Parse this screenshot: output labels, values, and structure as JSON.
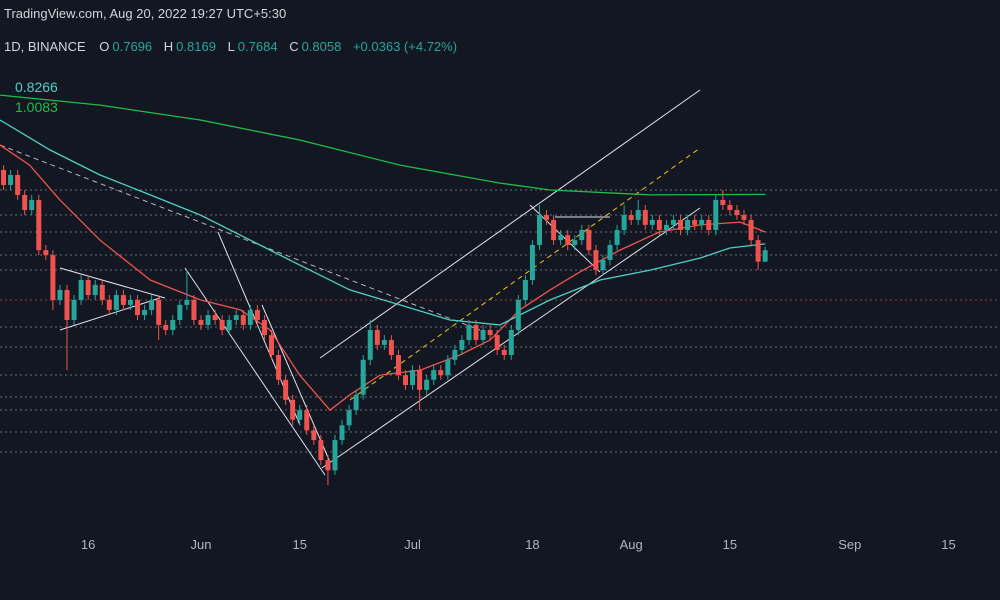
{
  "chart_data": {
    "type": "candlestick",
    "header": {
      "source": "TradingView.com, Aug 20, 2022 19:27 UTC+5:30",
      "symbol": "1D, BINANCE",
      "ohlc_labels": [
        "O",
        "H",
        "L",
        "C"
      ],
      "change": "+0.0363 (+4.72%)"
    },
    "up_color": "#26a69a",
    "down_color": "#ef5350",
    "log_scale": true,
    "ylim": [
      0.26,
      2.2
    ],
    "xlim": [
      2.5,
      144.3
    ],
    "xticks": [
      {
        "value": 15,
        "label": "16"
      },
      {
        "value": 31,
        "label": "Jun"
      },
      {
        "value": 45,
        "label": "15"
      },
      {
        "value": 61,
        "label": "Jul"
      },
      {
        "value": 78,
        "label": "18"
      },
      {
        "value": 92,
        "label": "Aug"
      },
      {
        "value": 106,
        "label": "15"
      },
      {
        "value": 123,
        "label": "Sep"
      },
      {
        "value": 137,
        "label": "15"
      }
    ],
    "x": [
      3,
      4,
      5,
      6,
      7,
      8,
      9,
      10,
      11,
      12,
      13,
      14,
      15,
      16,
      17,
      18,
      19,
      20,
      21,
      22,
      23,
      24,
      25,
      26,
      27,
      28,
      29,
      30,
      31,
      32,
      33,
      34,
      35,
      36,
      37,
      38,
      39,
      40,
      41,
      42,
      43,
      44,
      45,
      46,
      47,
      48,
      49,
      50,
      51,
      52,
      53,
      54,
      55,
      56,
      57,
      58,
      59,
      60,
      61,
      62,
      63,
      64,
      65,
      66,
      67,
      68,
      69,
      70,
      71,
      72,
      73,
      74,
      75,
      76,
      77,
      78,
      79,
      80,
      81,
      82,
      83,
      84,
      85,
      86,
      87,
      88,
      89,
      90,
      91,
      92,
      93,
      94,
      95,
      96,
      97,
      98,
      99,
      100,
      101,
      102,
      103,
      104,
      105,
      106,
      107,
      108,
      109,
      110,
      111
    ],
    "open": [
      1.112,
      1.047,
      1.09,
      1.006,
      0.947,
      0.986,
      0.806,
      0.79,
      0.66,
      0.687,
      0.609,
      0.66,
      0.715,
      0.673,
      0.701,
      0.66,
      0.634,
      0.673,
      0.647,
      0.66,
      0.621,
      0.634,
      0.66,
      0.597,
      0.585,
      0.609,
      0.647,
      0.66,
      0.609,
      0.597,
      0.621,
      0.609,
      0.585,
      0.609,
      0.621,
      0.597,
      0.634,
      0.609,
      0.573,
      0.529,
      0.479,
      0.442,
      0.408,
      0.424,
      0.391,
      0.376,
      0.347,
      0.333,
      0.376,
      0.399,
      0.424,
      0.451,
      0.519,
      0.585,
      0.551,
      0.562,
      0.529,
      0.488,
      0.469,
      0.498,
      0.46,
      0.479,
      0.498,
      0.488,
      0.519,
      0.54,
      0.562,
      0.597,
      0.562,
      0.585,
      0.573,
      0.54,
      0.529,
      0.585,
      0.66,
      0.715,
      0.823,
      0.928,
      0.91,
      0.839,
      0.856,
      0.823,
      0.839,
      0.874,
      0.806,
      0.744,
      0.775,
      0.823,
      0.874,
      0.928,
      0.91,
      0.947,
      0.892,
      0.91,
      0.874,
      0.892,
      0.91,
      0.874,
      0.91,
      0.892,
      0.91,
      0.874,
      0.986,
      0.966,
      0.947,
      0.928,
      0.91,
      0.839,
      0.7696
    ],
    "high": [
      1.134,
      1.112,
      1.112,
      1.026,
      1.006,
      1.006,
      0.823,
      0.806,
      0.701,
      0.701,
      0.673,
      0.729,
      0.729,
      0.715,
      0.715,
      0.673,
      0.687,
      0.687,
      0.673,
      0.673,
      0.647,
      0.673,
      0.673,
      0.609,
      0.621,
      0.66,
      0.744,
      0.673,
      0.621,
      0.634,
      0.634,
      0.621,
      0.621,
      0.634,
      0.634,
      0.647,
      0.647,
      0.621,
      0.585,
      0.54,
      0.488,
      0.451,
      0.433,
      0.433,
      0.399,
      0.384,
      0.354,
      0.384,
      0.408,
      0.433,
      0.46,
      0.529,
      0.609,
      0.597,
      0.573,
      0.573,
      0.54,
      0.498,
      0.508,
      0.508,
      0.488,
      0.508,
      0.508,
      0.529,
      0.551,
      0.573,
      0.609,
      0.609,
      0.597,
      0.597,
      0.585,
      0.551,
      0.597,
      0.673,
      0.729,
      0.839,
      0.966,
      0.947,
      0.928,
      0.874,
      0.874,
      0.856,
      0.892,
      0.892,
      0.823,
      0.79,
      0.839,
      0.892,
      0.966,
      0.947,
      0.986,
      0.966,
      0.928,
      0.928,
      0.91,
      0.928,
      0.928,
      0.928,
      0.928,
      0.928,
      0.928,
      1.006,
      1.026,
      0.986,
      0.966,
      0.947,
      0.928,
      0.856,
      0.8169
    ],
    "low": [
      1.026,
      1.026,
      0.986,
      0.928,
      0.928,
      0.79,
      0.775,
      0.634,
      0.647,
      0.498,
      0.597,
      0.647,
      0.66,
      0.66,
      0.647,
      0.621,
      0.621,
      0.634,
      0.634,
      0.609,
      0.609,
      0.621,
      0.562,
      0.573,
      0.573,
      0.597,
      0.634,
      0.597,
      0.585,
      0.585,
      0.597,
      0.573,
      0.573,
      0.597,
      0.585,
      0.585,
      0.597,
      0.562,
      0.519,
      0.469,
      0.433,
      0.399,
      0.399,
      0.384,
      0.369,
      0.34,
      0.314,
      0.327,
      0.369,
      0.391,
      0.416,
      0.442,
      0.508,
      0.54,
      0.54,
      0.519,
      0.479,
      0.46,
      0.46,
      0.424,
      0.451,
      0.469,
      0.479,
      0.479,
      0.508,
      0.529,
      0.551,
      0.551,
      0.551,
      0.562,
      0.529,
      0.519,
      0.519,
      0.573,
      0.647,
      0.701,
      0.806,
      0.892,
      0.823,
      0.823,
      0.806,
      0.806,
      0.823,
      0.79,
      0.729,
      0.729,
      0.759,
      0.806,
      0.856,
      0.892,
      0.892,
      0.874,
      0.874,
      0.856,
      0.856,
      0.874,
      0.856,
      0.856,
      0.874,
      0.874,
      0.856,
      0.856,
      0.947,
      0.928,
      0.91,
      0.892,
      0.823,
      0.744,
      0.7684
    ],
    "close": [
      1.047,
      1.09,
      1.006,
      0.947,
      0.986,
      0.806,
      0.79,
      0.66,
      0.687,
      0.609,
      0.66,
      0.715,
      0.673,
      0.701,
      0.66,
      0.634,
      0.673,
      0.647,
      0.66,
      0.621,
      0.634,
      0.66,
      0.597,
      0.585,
      0.609,
      0.647,
      0.66,
      0.609,
      0.597,
      0.621,
      0.609,
      0.585,
      0.609,
      0.621,
      0.597,
      0.634,
      0.609,
      0.573,
      0.529,
      0.479,
      0.442,
      0.408,
      0.424,
      0.391,
      0.376,
      0.347,
      0.333,
      0.376,
      0.399,
      0.424,
      0.451,
      0.519,
      0.585,
      0.551,
      0.562,
      0.529,
      0.488,
      0.469,
      0.498,
      0.46,
      0.479,
      0.498,
      0.488,
      0.519,
      0.54,
      0.562,
      0.597,
      0.562,
      0.585,
      0.573,
      0.54,
      0.529,
      0.585,
      0.66,
      0.715,
      0.823,
      0.928,
      0.91,
      0.839,
      0.856,
      0.823,
      0.839,
      0.874,
      0.806,
      0.744,
      0.775,
      0.823,
      0.874,
      0.928,
      0.91,
      0.947,
      0.892,
      0.91,
      0.874,
      0.892,
      0.91,
      0.874,
      0.91,
      0.892,
      0.91,
      0.874,
      0.986,
      0.966,
      0.947,
      0.928,
      0.91,
      0.839,
      0.7696,
      0.8058
    ],
    "moving_averages": [
      {
        "color": "#ef5350",
        "x": [
          2.5,
          6.7,
          11.0,
          16.7,
          23.8,
          30.9,
          36.6,
          40.8,
          45.0,
          49.3,
          52.1,
          56.4,
          62.1,
          67.7,
          72.0,
          76.2,
          80.5,
          84.7,
          90.4,
          96.0,
          101.8,
          107.5,
          111
        ],
        "values": [
          1.229,
          1.134,
          0.986,
          0.839,
          0.715,
          0.66,
          0.634,
          0.585,
          0.488,
          0.424,
          0.451,
          0.488,
          0.498,
          0.529,
          0.562,
          0.634,
          0.687,
          0.738,
          0.806,
          0.867,
          0.892,
          0.902,
          0.867
        ]
      },
      {
        "color": "#4dd0c4",
        "x": [
          2.5,
          9.6,
          16.7,
          23.8,
          30.9,
          38.0,
          45.0,
          52.1,
          59.2,
          66.3,
          73.4,
          80.5,
          87.6,
          94.7,
          101.8,
          106,
          111
        ],
        "values": [
          1.359,
          1.205,
          1.09,
          1.006,
          0.928,
          0.839,
          0.759,
          0.687,
          0.647,
          0.609,
          0.597,
          0.66,
          0.715,
          0.744,
          0.781,
          0.813,
          0.8266
        ]
      },
      {
        "color": "#1fbe4a",
        "x": [
          2.5,
          16.7,
          30.9,
          45.0,
          59.2,
          73.4,
          80.5,
          94.7,
          111
        ],
        "values": [
          1.502,
          1.443,
          1.359,
          1.254,
          1.134,
          1.055,
          1.026,
          1.006,
          1.0083
        ]
      }
    ]
  }
}
